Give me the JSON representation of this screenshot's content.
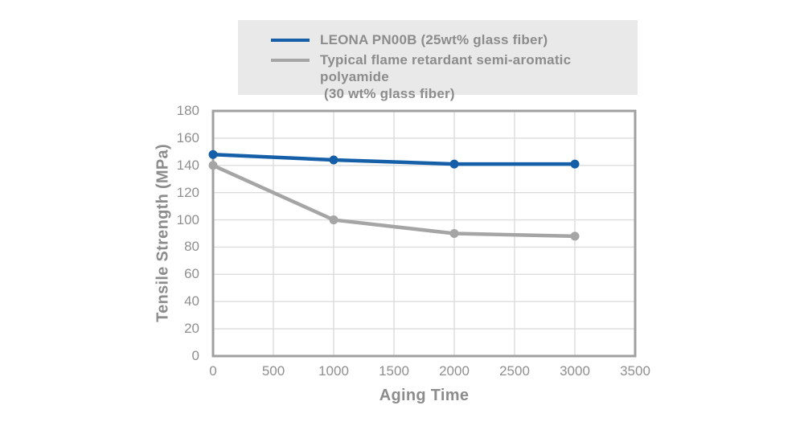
{
  "colors": {
    "background": "#ffffff",
    "legend_background": "#e9e9e9",
    "legend_text": "#8c8c8c",
    "plot_border": "#a0a0a0",
    "gridline": "#dcdcdc",
    "tick_label": "#8f8f8f",
    "axis_title": "#8c8c8c",
    "series_blue": "#155fa9",
    "series_gray": "#a5a5a5"
  },
  "chart_data": {
    "type": "line",
    "title": "",
    "xlabel": "Aging Time",
    "ylabel": "Tensile Strength (MPa)",
    "xlim": [
      0,
      3500
    ],
    "ylim": [
      0,
      180
    ],
    "xticks": [
      0,
      500,
      1000,
      1500,
      2000,
      2500,
      3000,
      3500
    ],
    "yticks": [
      0,
      20,
      40,
      60,
      80,
      100,
      120,
      140,
      160,
      180
    ],
    "grid": true,
    "legend_position": "top",
    "x": [
      0,
      1000,
      2000,
      3000
    ],
    "series": [
      {
        "name": "LEONA PN00B (25wt% glass fiber)",
        "color": "#155fa9",
        "values": [
          148,
          144,
          141,
          141
        ]
      },
      {
        "name": "Typical flame retardant semi-aromatic polyamide",
        "name2": "(30 wt% glass fiber)",
        "color": "#a5a5a5",
        "values": [
          140,
          100,
          90,
          88
        ]
      }
    ]
  }
}
